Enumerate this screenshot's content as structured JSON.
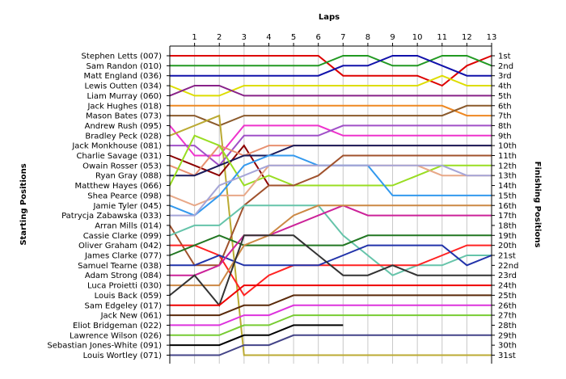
{
  "chart_data": {
    "type": "line",
    "title": "",
    "xlabel": "Laps",
    "ylabel_left": "Starting Positions",
    "ylabel_right": "Finishing Positions",
    "x": [
      0,
      1,
      2,
      3,
      4,
      5,
      6,
      7,
      8,
      9,
      10,
      11,
      12,
      13
    ],
    "x_ticks": [
      "1",
      "2",
      "3",
      "4",
      "5",
      "6",
      "7",
      "8",
      "9",
      "10",
      "11",
      "12",
      "13"
    ],
    "grid": "vertical",
    "y_reversed": true,
    "starting_order": [
      "Stephen Letts (007)",
      "Sam Randon (010)",
      "Matt England (036)",
      "Lewis Outten (034)",
      "Liam Murray (060)",
      "Jack Hughes (018)",
      "Mason Bates (073)",
      "Andrew Rush (095)",
      "Bradley Peck (028)",
      "Jack Monkhouse (081)",
      "Charlie Savage (031)",
      "Owain Rosser (053)",
      "Ryan Gray (088)",
      "Matthew Hayes (066)",
      "Shea Pearce (098)",
      "Jamie Tyler (045)",
      "Patrycja Zabawska (033)",
      "Arran Mills (014)",
      "Cassie Clarke (099)",
      "Oliver Graham (042)",
      "James Clarke (077)",
      "Samuel Tearne (038)",
      "Adam Strong (084)",
      "Luca Proietti (030)",
      "Louis Back (059)",
      "Sam Edgeley (017)",
      "Jack New (061)",
      "Eliot Bridgeman (022)",
      "Lawrence Wilson (026)",
      "Sebastian Jones-White (091)",
      "Louis Wortley (071)"
    ],
    "finishing_labels": [
      "1st",
      "2nd",
      "3rd",
      "4th",
      "5th",
      "6th",
      "7th",
      "8th",
      "9th",
      "10th",
      "11th",
      "12th",
      "13th",
      "14th",
      "15th",
      "16th",
      "17th",
      "18th",
      "19th",
      "20th",
      "21st",
      "22nd",
      "23rd",
      "24th",
      "25th",
      "26th",
      "27th",
      "28th",
      "29th",
      "30th",
      "31st"
    ],
    "series": [
      {
        "name": "Stephen Letts (007)",
        "color": "#dd0000",
        "values": [
          1,
          1,
          1,
          1,
          1,
          1,
          1,
          3,
          3,
          3,
          3,
          4,
          2,
          1
        ]
      },
      {
        "name": "Sam Randon (010)",
        "color": "#229922",
        "values": [
          2,
          2,
          2,
          2,
          2,
          2,
          2,
          1,
          1,
          2,
          2,
          1,
          1,
          2
        ]
      },
      {
        "name": "Matt England (036)",
        "color": "#1111aa",
        "values": [
          3,
          3,
          3,
          3,
          3,
          3,
          3,
          2,
          2,
          1,
          1,
          2,
          3,
          3
        ]
      },
      {
        "name": "Lewis Outten (034)",
        "color": "#dddd00",
        "values": [
          4,
          5,
          5,
          4,
          4,
          4,
          4,
          4,
          4,
          4,
          4,
          3,
          4,
          4
        ]
      },
      {
        "name": "Liam Murray (060)",
        "color": "#882288",
        "values": [
          5,
          4,
          4,
          5,
          5,
          5,
          5,
          5,
          5,
          5,
          5,
          5,
          5,
          5
        ]
      },
      {
        "name": "Jack Hughes (018)",
        "color": "#ee8822",
        "values": [
          6,
          6,
          6,
          6,
          6,
          6,
          6,
          6,
          6,
          6,
          6,
          6,
          7,
          7
        ]
      },
      {
        "name": "Mason Bates (073)",
        "color": "#8b5a2b",
        "values": [
          7,
          7,
          8,
          7,
          7,
          7,
          7,
          7,
          7,
          7,
          7,
          7,
          6,
          6
        ]
      },
      {
        "name": "Andrew Rush (095)",
        "color": "#ee33cc",
        "values": [
          8,
          11,
          11,
          8,
          8,
          8,
          8,
          9,
          9,
          9,
          9,
          9,
          9,
          9
        ]
      },
      {
        "name": "Bradley Peck (028)",
        "color": "#bbaa33",
        "values": [
          9,
          8,
          7,
          31,
          31,
          31,
          31,
          31,
          31,
          31,
          31,
          31,
          31,
          31
        ]
      },
      {
        "name": "Jack Monkhouse (081)",
        "color": "#a050c8",
        "values": [
          10,
          10,
          12,
          9,
          9,
          9,
          9,
          8,
          8,
          8,
          8,
          8,
          8,
          8
        ]
      },
      {
        "name": "Charlie Savage (031)",
        "color": "#8b0000",
        "values": [
          11,
          12,
          13,
          10,
          14,
          null,
          null,
          null,
          null,
          null,
          null,
          null,
          null,
          null
        ]
      },
      {
        "name": "Owain Rosser (053)",
        "color": "#e89070",
        "values": [
          12,
          13,
          10,
          11,
          10,
          10,
          10,
          10,
          10,
          10,
          10,
          10,
          10,
          10
        ]
      },
      {
        "name": "Ryan Gray (088)",
        "color": "#1a1a5a",
        "values": [
          13,
          13,
          12,
          11,
          11,
          10,
          10,
          10,
          10,
          10,
          10,
          10,
          10,
          10
        ]
      },
      {
        "name": "Matthew Hayes (066)",
        "color": "#99dd22",
        "values": [
          14,
          9,
          10,
          14,
          13,
          14,
          14,
          14,
          14,
          14,
          13,
          12,
          12,
          12
        ]
      },
      {
        "name": "Shea Pearce (098)",
        "color": "#e8a888",
        "values": [
          15,
          16,
          15,
          15,
          12,
          12,
          12,
          12,
          12,
          12,
          12,
          13,
          13,
          13
        ]
      },
      {
        "name": "Jamie Tyler (045)",
        "color": "#3399ee",
        "values": [
          16,
          17,
          15,
          12,
          11,
          11,
          12,
          12,
          12,
          15,
          15,
          15,
          15,
          15
        ]
      },
      {
        "name": "Patrycja Zabawska (033)",
        "color": "#a5a5d8",
        "values": [
          17,
          17,
          14,
          13,
          12,
          12,
          12,
          12,
          12,
          12,
          12,
          12,
          13,
          13
        ]
      },
      {
        "name": "Arran Mills (014)",
        "color": "#a0522d",
        "values": [
          18,
          22,
          22,
          16,
          14,
          14,
          13,
          11,
          11,
          11,
          11,
          11,
          11,
          11
        ]
      },
      {
        "name": "Cassie Clarke (099)",
        "color": "#66c4aa",
        "values": [
          19,
          18,
          18,
          16,
          16,
          16,
          16,
          19,
          21,
          23,
          22,
          22,
          21,
          21
        ]
      },
      {
        "name": "Oliver Graham (042)",
        "color": "#ff2222",
        "values": [
          20,
          20,
          21,
          25,
          23,
          22,
          22,
          22,
          22,
          22,
          22,
          21,
          20,
          20
        ]
      },
      {
        "name": "James Clarke (077)",
        "color": "#227722",
        "values": [
          21,
          20,
          19,
          20,
          20,
          20,
          20,
          20,
          19,
          19,
          19,
          19,
          19,
          19
        ]
      },
      {
        "name": "Samuel Tearne (038)",
        "color": "#2233aa",
        "values": [
          22,
          22,
          21,
          22,
          22,
          22,
          22,
          21,
          20,
          20,
          20,
          20,
          22,
          21
        ]
      },
      {
        "name": "Adam Strong (084)",
        "color": "#cc2299",
        "values": [
          23,
          23,
          22,
          19,
          19,
          18,
          17,
          16,
          17,
          17,
          17,
          17,
          17,
          17
        ]
      },
      {
        "name": "Luca Proietti (030)",
        "color": "#cc8844",
        "values": [
          24,
          24,
          24,
          20,
          19,
          17,
          16,
          16,
          16,
          16,
          16,
          16,
          16,
          16
        ]
      },
      {
        "name": "Louis Back (059)",
        "color": "#333333",
        "values": [
          25,
          23,
          26,
          19,
          19,
          19,
          21,
          23,
          23,
          22,
          23,
          23,
          23,
          23
        ]
      },
      {
        "name": "Sam Edgeley (017)",
        "color": "#ee0000",
        "values": [
          26,
          26,
          26,
          24,
          24,
          24,
          24,
          24,
          24,
          24,
          24,
          24,
          24,
          24
        ]
      },
      {
        "name": "Jack New (061)",
        "color": "#5a2a0a",
        "values": [
          27,
          27,
          27,
          26,
          26,
          25,
          25,
          25,
          25,
          25,
          25,
          25,
          25,
          25
        ]
      },
      {
        "name": "Eliot Bridgeman (022)",
        "color": "#dd33dd",
        "values": [
          28,
          28,
          28,
          27,
          27,
          26,
          26,
          26,
          26,
          26,
          26,
          26,
          26,
          26
        ]
      },
      {
        "name": "Lawrence Wilson (026)",
        "color": "#77cc33",
        "values": [
          29,
          29,
          29,
          28,
          28,
          27,
          27,
          27,
          27,
          27,
          27,
          27,
          27,
          27
        ]
      },
      {
        "name": "Sebastian Jones-White (091)",
        "color": "#000000",
        "values": [
          30,
          30,
          30,
          29,
          29,
          28,
          28,
          28,
          null,
          null,
          null,
          null,
          null,
          null
        ]
      },
      {
        "name": "Louis Wortley (071)",
        "color": "#444488",
        "values": [
          31,
          31,
          31,
          30,
          30,
          29,
          29,
          29,
          29,
          29,
          29,
          29,
          29,
          29
        ]
      }
    ]
  }
}
